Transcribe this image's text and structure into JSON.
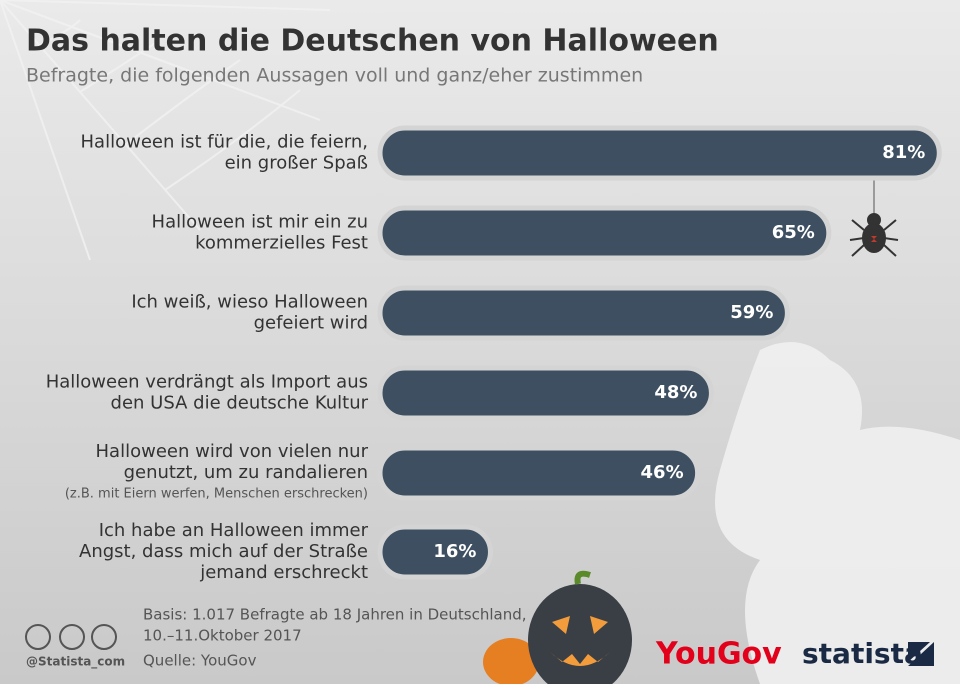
{
  "chart_data": {
    "type": "bar",
    "title": "Das halten die Deutschen von Halloween",
    "subtitle": "Befragte, die folgenden Aussagen voll und ganz/eher zustimmen",
    "orientation": "horizontal",
    "categories": [
      [
        "Halloween ist für die, die feiern,",
        "ein großer Spaß"
      ],
      [
        "Halloween ist mir ein zu",
        "kommerzielles Fest"
      ],
      [
        "Ich weiß, wieso Halloween",
        "gefeiert wird"
      ],
      [
        "Halloween verdrängt als Import aus",
        "den USA die deutsche Kultur"
      ],
      [
        "Halloween wird von vielen nur",
        "genutzt, um zu randalieren"
      ],
      [
        "Ich habe an Halloween immer",
        "Angst, dass mich auf der Straße",
        "jemand erschreckt"
      ]
    ],
    "annotations": [
      "(z.B. mit Eiern werfen, Menschen erschrecken)"
    ],
    "values": [
      81,
      65,
      59,
      48,
      46,
      16
    ],
    "value_labels": [
      "81%",
      "65%",
      "59%",
      "48%",
      "46%",
      "16%"
    ],
    "color": "#3d4f60",
    "xlim": [
      0,
      84
    ],
    "source": [
      "Basis: 1.017 Befragte ab 18 Jahren in Deutschland,",
      "10.–11.Oktober 2017"
    ],
    "source_label": "Quelle: YouGov",
    "credit": "@Statista_com",
    "logos": [
      "YouGov",
      "statista"
    ]
  }
}
